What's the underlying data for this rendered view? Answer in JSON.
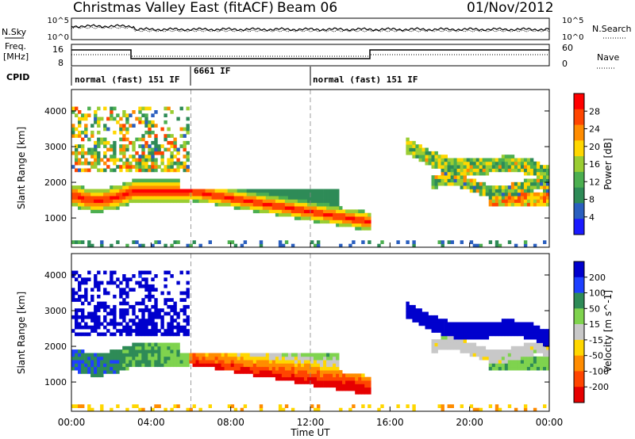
{
  "header": {
    "title": "Christmas Valley East (fitACF)",
    "beam": "Beam 06",
    "date": "01/Nov/2012"
  },
  "top_panels": {
    "nsky_label": "N.Sky",
    "nsearch_label": "N.Search",
    "noise_ticks_left": [
      "10^5",
      "10^0"
    ],
    "noise_ticks_right": [
      "10^5",
      "10^0"
    ],
    "freq_label": "Freq.",
    "freq_unit": "[MHz]",
    "freq_ticks": [
      "16",
      "8"
    ],
    "nave_ticks": [
      "60",
      "0"
    ],
    "nave_label": "Nave",
    "cpid_label": "CPID",
    "cpid_segments": [
      {
        "label": "normal (fast) 151 IF",
        "start": 0,
        "end": 6
      },
      {
        "label": "6661 IF",
        "start": 6,
        "end": 12
      },
      {
        "label": "normal (fast) 151 IF",
        "start": 12,
        "end": 24
      }
    ]
  },
  "colors": {
    "power_scale": [
      "#1a1aff",
      "#2a5fbf",
      "#2e8b57",
      "#4caf50",
      "#9acd32",
      "#ffd700",
      "#ff8c00",
      "#ff4500",
      "#ff0000"
    ],
    "velocity_scale": [
      "#0000cd",
      "#1e40ff",
      "#2e8b57",
      "#7fd34e",
      "#c8c8c8",
      "#ffd700",
      "#ff8c00",
      "#ff4500",
      "#e60000"
    ]
  },
  "chart_data": [
    {
      "type": "heatmap",
      "name": "power",
      "ylabel": "Slant Range [km]",
      "yticks": [
        1000,
        2000,
        3000,
        4000
      ],
      "ylim": [
        180,
        4600
      ],
      "xlim": [
        0,
        24
      ],
      "colorbar_label": "Power [dB]",
      "colorbar_ticks": [
        "4",
        "8",
        "12",
        "16",
        "20",
        "24",
        "28"
      ],
      "clim": [
        0,
        32
      ]
    },
    {
      "type": "heatmap",
      "name": "velocity",
      "ylabel": "Slant Range [km]",
      "yticks": [
        1000,
        2000,
        3000,
        4000
      ],
      "ylim": [
        180,
        4600
      ],
      "xlim": [
        0,
        24
      ],
      "colorbar_label": "Velocity [m s^-1]",
      "colorbar_ticks": [
        "200",
        "100",
        "50",
        "15",
        "-15",
        "-50",
        "-100",
        "-200"
      ]
    }
  ],
  "xaxis": {
    "ticks": [
      "00:00",
      "04:00",
      "08:00",
      "12:00",
      "16:00",
      "20:00",
      "00:00"
    ],
    "label": "Time UT"
  }
}
